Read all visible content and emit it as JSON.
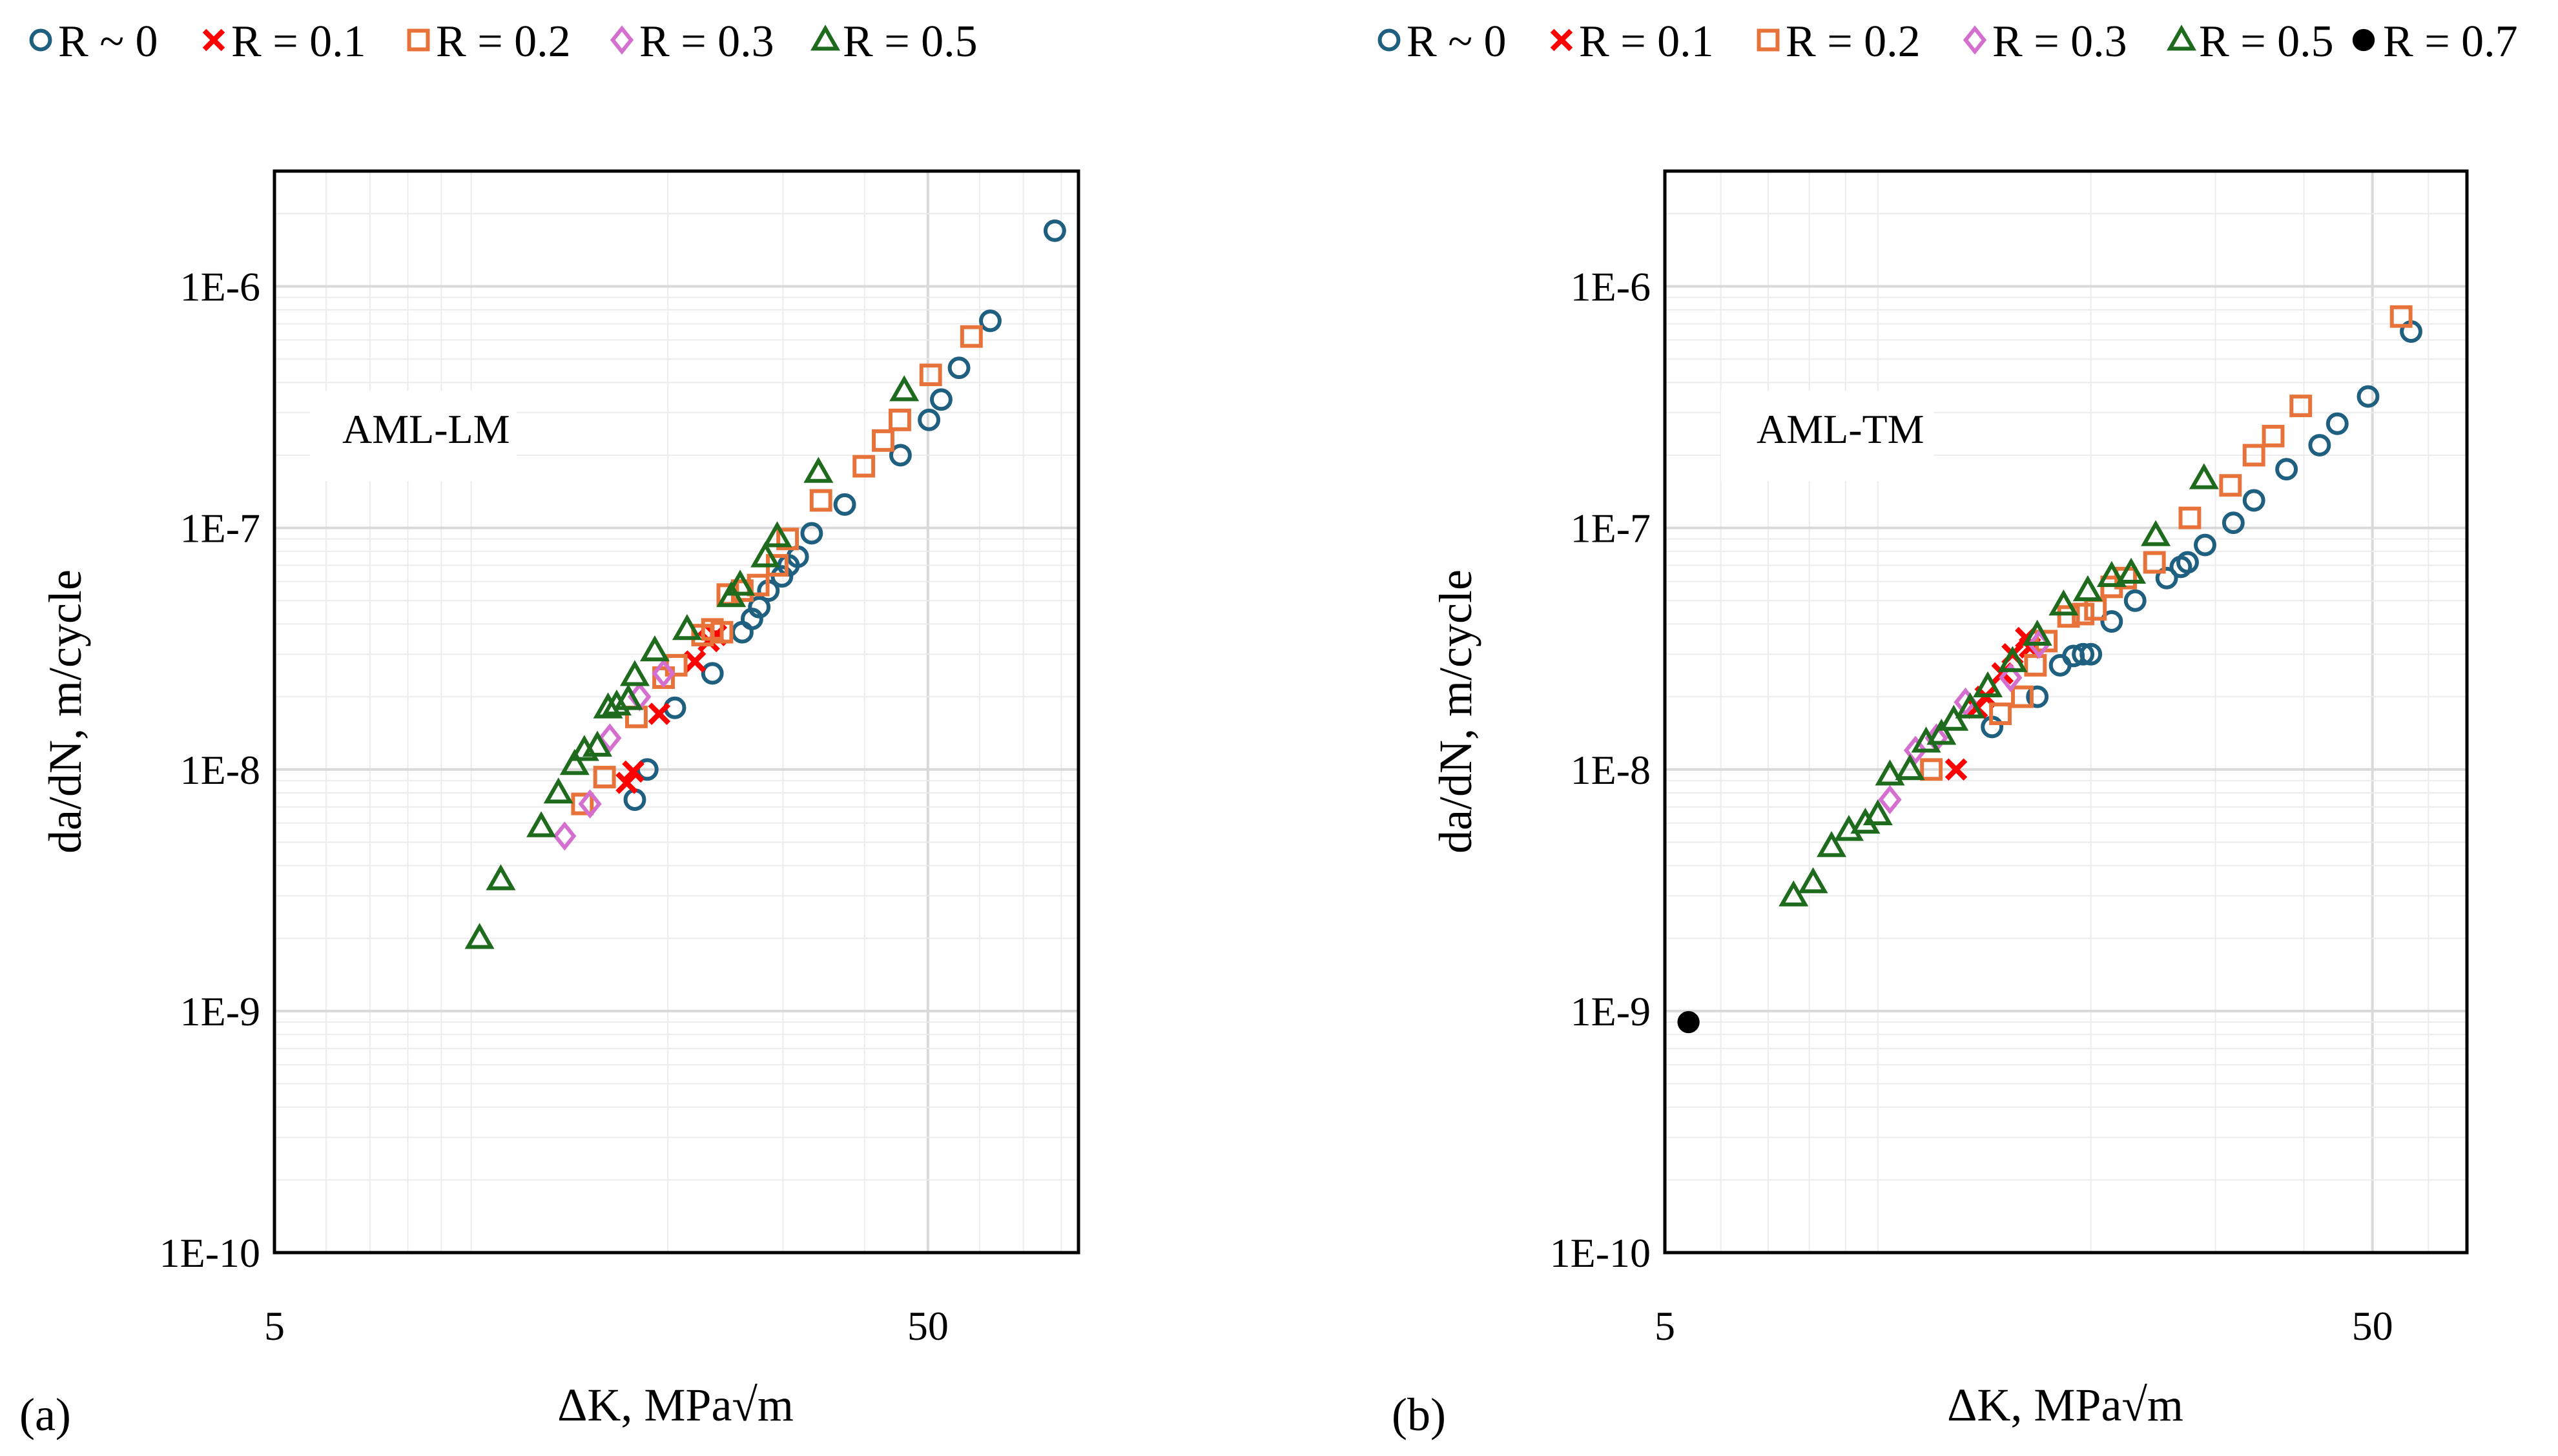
{
  "colors": {
    "R0": "#1f5f7f",
    "R0.1": "#ff0000",
    "R0.2": "#e8733a",
    "R0.3": "#d46fd0",
    "R0.5": "#1e6b1e",
    "R0.7": "#000000"
  },
  "chart_data": [
    {
      "type": "scatter",
      "panel_label": "(a)",
      "annotation": "AML-LM",
      "xlabel": "ΔK, MPa√m",
      "ylabel": "da/dN, m/cycle",
      "xscale": "log",
      "yscale": "log",
      "xlim": [
        5,
        85
      ],
      "ylim": [
        1e-10,
        3e-06
      ],
      "x_ticks": [
        {
          "v": 5,
          "label": "5"
        },
        {
          "v": 50,
          "label": "50"
        }
      ],
      "y_ticks": [
        {
          "v": 1e-10,
          "label": "1E-10"
        },
        {
          "v": 1e-09,
          "label": "1E-9"
        },
        {
          "v": 1e-08,
          "label": "1E-8"
        },
        {
          "v": 1e-07,
          "label": "1E-7"
        },
        {
          "v": 1e-06,
          "label": "1E-6"
        }
      ],
      "legend": [
        "R ~ 0",
        "R = 0.1",
        "R = 0.2",
        "R = 0.3",
        "R = 0.5"
      ],
      "legend_position": "top",
      "series": [
        {
          "name": "R ~ 0",
          "marker": "circle-open",
          "color_key": "R0",
          "points": [
            [
              17.8,
              7.5e-09
            ],
            [
              18.6,
              1e-08
            ],
            [
              20.5,
              1.8e-08
            ],
            [
              23.4,
              2.5e-08
            ],
            [
              26.0,
              3.7e-08
            ],
            [
              26.9,
              4.2e-08
            ],
            [
              27.6,
              4.7e-08
            ],
            [
              28.5,
              5.5e-08
            ],
            [
              29.9,
              6.3e-08
            ],
            [
              30.6,
              7e-08
            ],
            [
              31.6,
              7.6e-08
            ],
            [
              33.2,
              9.5e-08
            ],
            [
              37.3,
              1.25e-07
            ],
            [
              45.4,
              2e-07
            ],
            [
              50.2,
              2.8e-07
            ],
            [
              52.4,
              3.4e-07
            ],
            [
              55.8,
              4.6e-07
            ],
            [
              62.3,
              7.2e-07
            ],
            [
              78.2,
              1.7e-06
            ]
          ]
        },
        {
          "name": "R = 0.1",
          "marker": "x",
          "color_key": "R0.1",
          "points": [
            [
              17.3,
              8.8e-09
            ],
            [
              17.7,
              9.8e-09
            ],
            [
              19.4,
              1.7e-08
            ],
            [
              22.0,
              2.8e-08
            ],
            [
              23.1,
              3.4e-08
            ],
            [
              23.7,
              3.6e-08
            ]
          ]
        },
        {
          "name": "R = 0.2",
          "marker": "square-open",
          "color_key": "R0.2",
          "points": [
            [
              14.8,
              7.2e-09
            ],
            [
              16.0,
              9.3e-09
            ],
            [
              17.9,
              1.65e-08
            ],
            [
              19.7,
              2.4e-08
            ],
            [
              20.6,
              2.7e-08
            ],
            [
              22.6,
              3.6e-08
            ],
            [
              23.4,
              3.8e-08
            ],
            [
              24.2,
              3.7e-08
            ],
            [
              24.7,
              5.3e-08
            ],
            [
              26.0,
              5.5e-08
            ],
            [
              27.5,
              5.8e-08
            ],
            [
              29.4,
              7e-08
            ],
            [
              30.5,
              9e-08
            ],
            [
              34.3,
              1.3e-07
            ],
            [
              39.9,
              1.8e-07
            ],
            [
              42.7,
              2.3e-07
            ],
            [
              45.3,
              2.8e-07
            ],
            [
              50.5,
              4.3e-07
            ],
            [
              58.3,
              6.2e-07
            ]
          ]
        },
        {
          "name": "R = 0.3",
          "marker": "diamond-open",
          "color_key": "R0.3",
          "points": [
            [
              13.9,
              5.3e-09
            ],
            [
              15.2,
              7.2e-09
            ],
            [
              16.3,
              1.35e-08
            ],
            [
              18.1,
              2e-08
            ],
            [
              19.7,
              2.5e-08
            ]
          ]
        },
        {
          "name": "R = 0.5",
          "marker": "triangle-open",
          "color_key": "R0.5",
          "points": [
            [
              10.3,
              2e-09
            ],
            [
              11.1,
              3.5e-09
            ],
            [
              12.8,
              5.8e-09
            ],
            [
              13.6,
              8e-09
            ],
            [
              14.4,
              1.05e-08
            ],
            [
              14.9,
              1.2e-08
            ],
            [
              15.6,
              1.25e-08
            ],
            [
              16.2,
              1.8e-08
            ],
            [
              16.7,
              1.85e-08
            ],
            [
              17.4,
              1.95e-08
            ],
            [
              17.8,
              2.45e-08
            ],
            [
              19.1,
              3.1e-08
            ],
            [
              21.4,
              3.8e-08
            ],
            [
              25.0,
              5.2e-08
            ],
            [
              25.8,
              5.8e-08
            ],
            [
              28.2,
              7.6e-08
            ],
            [
              29.4,
              9.2e-08
            ],
            [
              34.0,
              1.7e-07
            ],
            [
              46.0,
              3.7e-07
            ]
          ]
        }
      ]
    },
    {
      "type": "scatter",
      "panel_label": "(b)",
      "annotation": "AML-TM",
      "xlabel": "ΔK, MPa√m",
      "ylabel": "da/dN, m/cycle",
      "xscale": "log",
      "yscale": "log",
      "xlim": [
        5,
        68
      ],
      "ylim": [
        1e-10,
        3e-06
      ],
      "x_ticks": [
        {
          "v": 5,
          "label": "5"
        },
        {
          "v": 50,
          "label": "50"
        }
      ],
      "y_ticks": [
        {
          "v": 1e-10,
          "label": "1E-10"
        },
        {
          "v": 1e-09,
          "label": "1E-9"
        },
        {
          "v": 1e-08,
          "label": "1E-8"
        },
        {
          "v": 1e-07,
          "label": "1E-7"
        },
        {
          "v": 1e-06,
          "label": "1E-6"
        }
      ],
      "legend": [
        "R ~ 0",
        "R = 0.1",
        "R = 0.2",
        "R = 0.3",
        "R = 0.5",
        "R = 0.7"
      ],
      "legend_position": "top",
      "series": [
        {
          "name": "R ~ 0",
          "marker": "circle-open",
          "color_key": "R0",
          "points": [
            [
              14.5,
              1.5e-08
            ],
            [
              16.8,
              2e-08
            ],
            [
              18.1,
              2.7e-08
            ],
            [
              18.9,
              2.95e-08
            ],
            [
              19.5,
              3e-08
            ],
            [
              20.0,
              3e-08
            ],
            [
              21.4,
              4.1e-08
            ],
            [
              23.1,
              5e-08
            ],
            [
              25.6,
              6.2e-08
            ],
            [
              26.8,
              6.9e-08
            ],
            [
              27.4,
              7.2e-08
            ],
            [
              29.0,
              8.5e-08
            ],
            [
              31.8,
              1.05e-07
            ],
            [
              34.0,
              1.3e-07
            ],
            [
              37.8,
              1.75e-07
            ],
            [
              42.1,
              2.2e-07
            ],
            [
              44.6,
              2.7e-07
            ],
            [
              49.3,
              3.5e-07
            ],
            [
              56.7,
              6.5e-07
            ]
          ]
        },
        {
          "name": "R = 0.1",
          "marker": "x",
          "color_key": "R0.1",
          "points": [
            [
              12.9,
              1e-08
            ],
            [
              13.8,
              1.8e-08
            ],
            [
              14.2,
              2e-08
            ],
            [
              15.0,
              2.5e-08
            ],
            [
              15.5,
              3e-08
            ],
            [
              16.2,
              3.5e-08
            ],
            [
              16.4,
              3.2e-08
            ]
          ]
        },
        {
          "name": "R = 0.2",
          "marker": "square-open",
          "color_key": "R0.2",
          "points": [
            [
              11.9,
              1e-08
            ],
            [
              14.9,
              1.7e-08
            ],
            [
              16.0,
              2e-08
            ],
            [
              16.7,
              2.7e-08
            ],
            [
              17.3,
              3.4e-08
            ],
            [
              18.6,
              4.3e-08
            ],
            [
              19.5,
              4.4e-08
            ],
            [
              20.3,
              4.6e-08
            ],
            [
              21.4,
              5.7e-08
            ],
            [
              22.4,
              6.2e-08
            ],
            [
              24.6,
              7.2e-08
            ],
            [
              27.6,
              1.1e-07
            ],
            [
              31.5,
              1.5e-07
            ],
            [
              34.0,
              2e-07
            ],
            [
              36.2,
              2.4e-07
            ],
            [
              39.6,
              3.2e-07
            ],
            [
              54.9,
              7.5e-07
            ]
          ]
        },
        {
          "name": "R = 0.3",
          "marker": "diamond-open",
          "color_key": "R0.3",
          "points": [
            [
              10.4,
              7.5e-09
            ],
            [
              11.3,
              1.2e-08
            ],
            [
              12.1,
              1.35e-08
            ],
            [
              13.3,
              1.9e-08
            ],
            [
              15.4,
              2.4e-08
            ],
            [
              16.9,
              3.3e-08
            ]
          ]
        },
        {
          "name": "R = 0.5",
          "marker": "triangle-open",
          "color_key": "R0.5",
          "points": [
            [
              7.6,
              3e-09
            ],
            [
              8.1,
              3.4e-09
            ],
            [
              8.6,
              4.8e-09
            ],
            [
              9.1,
              5.6e-09
            ],
            [
              9.6,
              6e-09
            ],
            [
              10.0,
              6.5e-09
            ],
            [
              10.4,
              9.5e-09
            ],
            [
              11.1,
              1e-08
            ],
            [
              11.7,
              1.3e-08
            ],
            [
              12.3,
              1.4e-08
            ],
            [
              12.8,
              1.6e-08
            ],
            [
              13.5,
              1.8e-08
            ],
            [
              14.3,
              2.2e-08
            ],
            [
              15.5,
              2.8e-08
            ],
            [
              16.8,
              3.6e-08
            ],
            [
              18.3,
              4.8e-08
            ],
            [
              19.8,
              5.5e-08
            ],
            [
              21.4,
              6.3e-08
            ],
            [
              22.8,
              6.5e-08
            ],
            [
              24.7,
              9.3e-08
            ],
            [
              28.9,
              1.6e-07
            ]
          ]
        },
        {
          "name": "R = 0.7",
          "marker": "circle-filled",
          "color_key": "R0.7",
          "points": [
            [
              5.4,
              9e-10
            ]
          ]
        }
      ]
    }
  ]
}
